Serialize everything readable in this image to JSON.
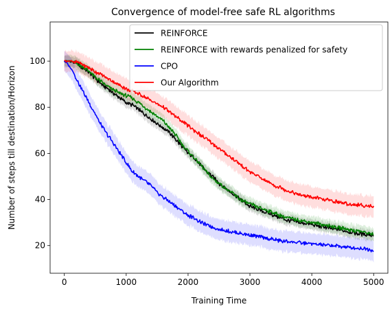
{
  "chart_data": {
    "type": "line",
    "title": "Convergence of model-free safe RL algorithms",
    "xlabel": "Training Time",
    "ylabel": "Number of steps till destination/Horizon",
    "xlim": [
      -230,
      5230
    ],
    "ylim": [
      8,
      117
    ],
    "xticks": [
      0,
      1000,
      2000,
      3000,
      4000,
      5000
    ],
    "yticks": [
      20,
      40,
      60,
      80,
      100
    ],
    "grid": false,
    "legend_position": "top-right",
    "series": [
      {
        "name": "REINFORCE",
        "color": "#000000",
        "band": 2.5,
        "points": [
          [
            0,
            100
          ],
          [
            100,
            100
          ],
          [
            200,
            99
          ],
          [
            300,
            97
          ],
          [
            400,
            95
          ],
          [
            500,
            92.5
          ],
          [
            600,
            90
          ],
          [
            700,
            88
          ],
          [
            800,
            86
          ],
          [
            900,
            84
          ],
          [
            1000,
            82
          ],
          [
            1100,
            81
          ],
          [
            1200,
            79
          ],
          [
            1300,
            77
          ],
          [
            1400,
            75
          ],
          [
            1500,
            73
          ],
          [
            1600,
            71
          ],
          [
            1700,
            69
          ],
          [
            1800,
            66
          ],
          [
            1900,
            63
          ],
          [
            2000,
            60
          ],
          [
            2100,
            58
          ],
          [
            2200,
            55
          ],
          [
            2300,
            52
          ],
          [
            2400,
            50
          ],
          [
            2500,
            47
          ],
          [
            2600,
            45
          ],
          [
            2700,
            43
          ],
          [
            2800,
            41
          ],
          [
            2900,
            39
          ],
          [
            3000,
            37
          ],
          [
            3200,
            35
          ],
          [
            3400,
            33
          ],
          [
            3600,
            31
          ],
          [
            3800,
            30
          ],
          [
            4000,
            29
          ],
          [
            4200,
            28
          ],
          [
            4400,
            27
          ],
          [
            4600,
            26
          ],
          [
            4800,
            25
          ],
          [
            5000,
            24.5
          ]
        ]
      },
      {
        "name": "REINFORCE with rewards penalized for safety",
        "color": "#008000",
        "band": 3,
        "points": [
          [
            0,
            100
          ],
          [
            100,
            100
          ],
          [
            200,
            99
          ],
          [
            300,
            97.5
          ],
          [
            400,
            95.5
          ],
          [
            500,
            93
          ],
          [
            600,
            91
          ],
          [
            700,
            89
          ],
          [
            800,
            87.5
          ],
          [
            900,
            86
          ],
          [
            1000,
            85
          ],
          [
            1100,
            84
          ],
          [
            1200,
            82
          ],
          [
            1300,
            80
          ],
          [
            1400,
            78
          ],
          [
            1500,
            76
          ],
          [
            1600,
            74
          ],
          [
            1700,
            71
          ],
          [
            1800,
            68
          ],
          [
            1900,
            64
          ],
          [
            2000,
            61
          ],
          [
            2100,
            58
          ],
          [
            2200,
            55
          ],
          [
            2300,
            52
          ],
          [
            2400,
            49
          ],
          [
            2500,
            47
          ],
          [
            2600,
            45
          ],
          [
            2700,
            43
          ],
          [
            2800,
            41
          ],
          [
            2900,
            39
          ],
          [
            3000,
            38
          ],
          [
            3200,
            36
          ],
          [
            3400,
            34
          ],
          [
            3600,
            32
          ],
          [
            3800,
            31
          ],
          [
            4000,
            30
          ],
          [
            4200,
            29
          ],
          [
            4400,
            28
          ],
          [
            4600,
            27
          ],
          [
            4800,
            26
          ],
          [
            5000,
            25
          ]
        ]
      },
      {
        "name": "CPO",
        "color": "#0000ff",
        "band": 5,
        "points": [
          [
            0,
            100
          ],
          [
            50,
            99
          ],
          [
            100,
            97
          ],
          [
            150,
            95
          ],
          [
            200,
            92
          ],
          [
            300,
            87
          ],
          [
            400,
            82
          ],
          [
            500,
            77
          ],
          [
            600,
            72
          ],
          [
            700,
            68
          ],
          [
            800,
            64
          ],
          [
            900,
            60
          ],
          [
            1000,
            56
          ],
          [
            1100,
            52
          ],
          [
            1200,
            50
          ],
          [
            1300,
            48
          ],
          [
            1400,
            46
          ],
          [
            1500,
            43
          ],
          [
            1600,
            41
          ],
          [
            1700,
            39
          ],
          [
            1800,
            37
          ],
          [
            1900,
            35
          ],
          [
            2000,
            33
          ],
          [
            2100,
            32
          ],
          [
            2200,
            30
          ],
          [
            2300,
            29
          ],
          [
            2400,
            28
          ],
          [
            2500,
            27
          ],
          [
            2700,
            26
          ],
          [
            2900,
            25
          ],
          [
            3100,
            24
          ],
          [
            3300,
            23
          ],
          [
            3500,
            22
          ],
          [
            3700,
            21.5
          ],
          [
            3900,
            21
          ],
          [
            4100,
            20.5
          ],
          [
            4300,
            20
          ],
          [
            4500,
            19.5
          ],
          [
            4700,
            19
          ],
          [
            4900,
            18.5
          ],
          [
            5000,
            18
          ]
        ]
      },
      {
        "name": "Our Algorithm",
        "color": "#ff0000",
        "band": 5,
        "points": [
          [
            0,
            100
          ],
          [
            100,
            100
          ],
          [
            200,
            99.5
          ],
          [
            300,
            98.5
          ],
          [
            400,
            97
          ],
          [
            500,
            95.5
          ],
          [
            600,
            94
          ],
          [
            700,
            92.5
          ],
          [
            800,
            91
          ],
          [
            900,
            89.5
          ],
          [
            1000,
            88
          ],
          [
            1100,
            87
          ],
          [
            1200,
            86
          ],
          [
            1300,
            84.5
          ],
          [
            1400,
            83
          ],
          [
            1500,
            81.5
          ],
          [
            1600,
            80
          ],
          [
            1700,
            78
          ],
          [
            1800,
            76
          ],
          [
            1900,
            74
          ],
          [
            2000,
            72
          ],
          [
            2100,
            70
          ],
          [
            2200,
            68
          ],
          [
            2300,
            66
          ],
          [
            2400,
            64
          ],
          [
            2500,
            62
          ],
          [
            2600,
            60
          ],
          [
            2700,
            58
          ],
          [
            2800,
            56
          ],
          [
            2900,
            54
          ],
          [
            3000,
            52
          ],
          [
            3200,
            49
          ],
          [
            3400,
            46
          ],
          [
            3600,
            44
          ],
          [
            3800,
            42
          ],
          [
            4000,
            41
          ],
          [
            4200,
            40
          ],
          [
            4400,
            39
          ],
          [
            4600,
            38
          ],
          [
            4800,
            37.5
          ],
          [
            5000,
            37
          ]
        ]
      }
    ]
  }
}
